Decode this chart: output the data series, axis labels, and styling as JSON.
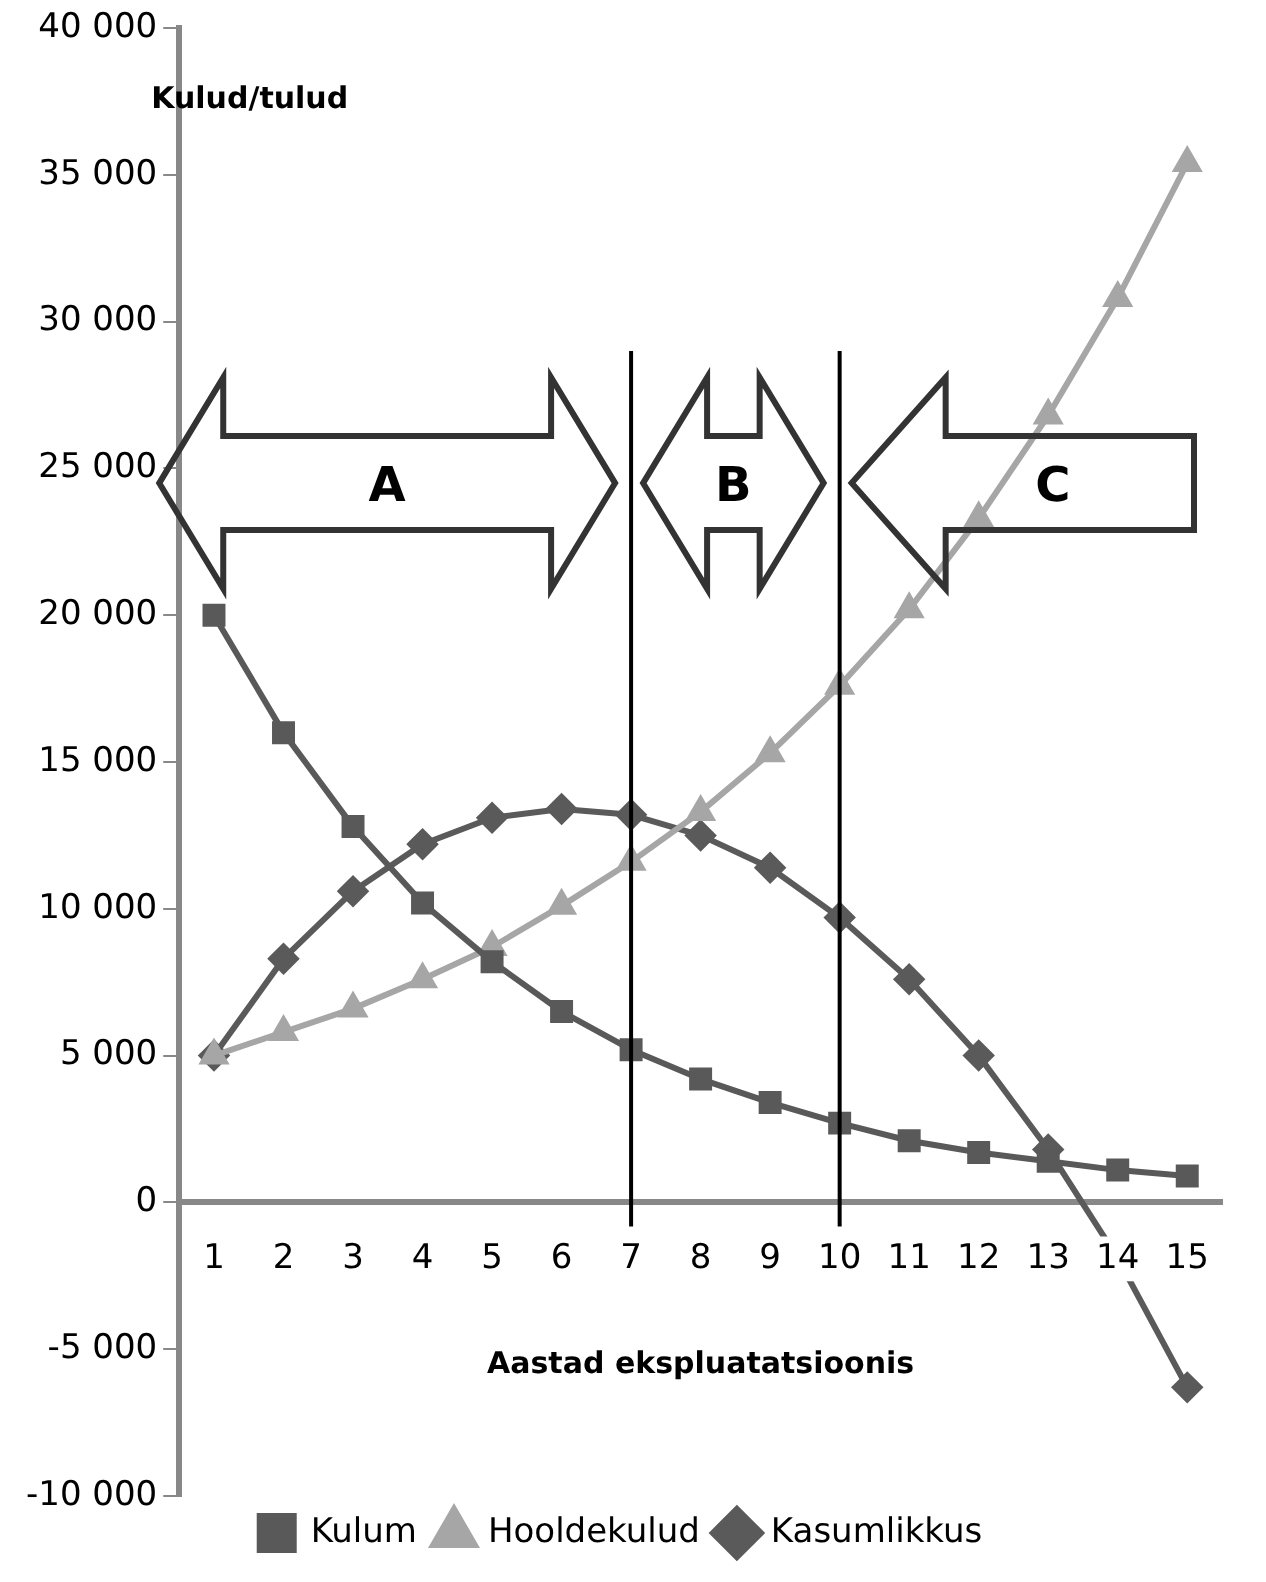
{
  "chart_data": {
    "type": "line",
    "xlabel": "Aastad ekspluatatsioonis",
    "ylabel": "Kulud/tulud",
    "x": [
      1,
      2,
      3,
      4,
      5,
      6,
      7,
      8,
      9,
      10,
      11,
      12,
      13,
      14,
      15
    ],
    "xlim": [
      0.5,
      15.5
    ],
    "xticks": [
      1,
      2,
      3,
      4,
      5,
      6,
      7,
      8,
      9,
      10,
      11,
      12,
      13,
      14,
      15
    ],
    "ylim": [
      -10000,
      40000
    ],
    "yticks": [
      {
        "value": -10000,
        "label": "-10 000"
      },
      {
        "value": -5000,
        "label": "-5 000"
      },
      0,
      {
        "value": 5000,
        "label": "5 000"
      },
      {
        "value": 10000,
        "label": "10 000"
      },
      {
        "value": 15000,
        "label": "15 000"
      },
      {
        "value": 20000,
        "label": "20 000"
      },
      {
        "value": 25000,
        "label": "25 000"
      },
      {
        "value": 30000,
        "label": "30 000"
      },
      {
        "value": 35000,
        "label": "35 000"
      },
      {
        "value": 40000,
        "label": "40 000"
      }
    ],
    "series": [
      {
        "name": "Kulum",
        "color": "#595959",
        "marker": "square",
        "values": [
          20000,
          16000,
          12800,
          10200,
          8200,
          6500,
          5200,
          4200,
          3400,
          2700,
          2100,
          1700,
          1400,
          1100,
          900
        ]
      },
      {
        "name": "Hooldekulud",
        "color": "#a6a6a6",
        "marker": "triangle",
        "values": [
          5000,
          5800,
          6600,
          7600,
          8700,
          10100,
          11600,
          13300,
          15300,
          17600,
          20200,
          23300,
          26800,
          30800,
          35400
        ]
      },
      {
        "name": "Kasumlikkus",
        "color": "#5a5a5a",
        "marker": "diamond",
        "values": [
          5000,
          8300,
          10600,
          12200,
          13100,
          13400,
          13200,
          12500,
          11400,
          9700,
          7600,
          5000,
          1800,
          -1900,
          -6300
        ]
      }
    ],
    "ref_lines": [
      {
        "axis": "x",
        "value": 7,
        "color": "#000000"
      },
      {
        "axis": "x",
        "value": 10,
        "color": "#000000"
      }
    ],
    "annotations": [
      "A",
      "B",
      "C"
    ],
    "grid": false,
    "legend": "bottom"
  }
}
